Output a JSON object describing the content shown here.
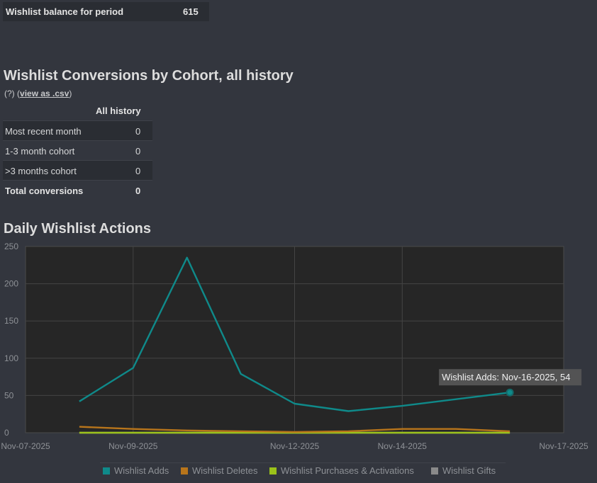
{
  "balance": {
    "label": "Wishlist balance for period",
    "value": "615"
  },
  "cohort": {
    "title": "Wishlist Conversions by Cohort, all history",
    "help": "(?)",
    "csv_link": "view as .csv",
    "column_header": "All history",
    "rows": [
      {
        "label": "Most recent month",
        "value": "0"
      },
      {
        "label": "1-3 month cohort",
        "value": "0"
      },
      {
        "label": ">3 months cohort",
        "value": "0"
      },
      {
        "label": "Total conversions",
        "value": "0"
      }
    ]
  },
  "actions": {
    "title": "Daily Wishlist Actions"
  },
  "colors": {
    "adds": "#0f8a8a",
    "deletes": "#b8751b",
    "purchases": "#9bc21a",
    "gifts": "#8a8a8a"
  },
  "chart_data": {
    "type": "line",
    "title": "Daily Wishlist Actions",
    "x_axis": {
      "type": "date",
      "range": [
        "2025-11-07",
        "2025-11-17"
      ],
      "tick_labels": [
        "Nov-07-2025",
        "Nov-09-2025",
        "Nov-12-2025",
        "Nov-14-2025",
        "Nov-17-2025"
      ],
      "tick_dates": [
        "2025-11-07",
        "2025-11-09",
        "2025-11-12",
        "2025-11-14",
        "2025-11-17"
      ]
    },
    "y_axis": {
      "range": [
        0,
        250
      ],
      "tick_labels": [
        "0",
        "50",
        "100",
        "150",
        "200",
        "250"
      ],
      "ticks": [
        0,
        50,
        100,
        150,
        200,
        250
      ]
    },
    "grid": true,
    "legend_position": "bottom",
    "x": [
      "2025-11-08",
      "2025-11-09",
      "2025-11-10",
      "2025-11-11",
      "2025-11-12",
      "2025-11-13",
      "2025-11-14",
      "2025-11-15",
      "2025-11-16"
    ],
    "series": [
      {
        "name": "Wishlist Adds",
        "values": [
          42,
          87,
          235,
          79,
          39,
          29,
          36,
          45,
          54
        ]
      },
      {
        "name": "Wishlist Deletes",
        "values": [
          8,
          5,
          3,
          2,
          1,
          2,
          5,
          5,
          2
        ]
      },
      {
        "name": "Wishlist Purchases & Activations",
        "values": [
          0,
          0,
          0,
          0,
          0,
          0,
          0,
          0,
          0
        ]
      },
      {
        "name": "Wishlist Gifts",
        "values": [
          0,
          0,
          0,
          0,
          0,
          0,
          0,
          0,
          0
        ]
      }
    ],
    "tooltip": "Wishlist Adds: Nov-16-2025, 54"
  }
}
